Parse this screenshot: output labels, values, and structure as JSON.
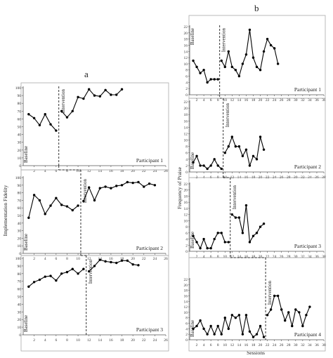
{
  "figure": {
    "label_a": "a",
    "label_b": "b"
  },
  "chart_data": [
    {
      "id": "a",
      "type": "line",
      "ylabel": "Implementation Fidelity",
      "xlabel": "",
      "xlim": [
        0,
        26
      ],
      "xticks": [
        2,
        4,
        6,
        8,
        10,
        12,
        14,
        16,
        18,
        20,
        22,
        24,
        26
      ],
      "ylim": [
        0,
        100
      ],
      "yticks": [
        0,
        10,
        20,
        30,
        40,
        50,
        60,
        70,
        80,
        90,
        100
      ],
      "panels": [
        {
          "name": "Participant 1",
          "baseline_label": "Baseline",
          "intervention_label": "Intervention",
          "phase_change_after": 6.5,
          "baseline": {
            "x": [
              1,
              2,
              3,
              4,
              5,
              6
            ],
            "y": [
              66,
              61,
              52,
              66,
              53,
              45
            ]
          },
          "intervention": {
            "x": [
              7,
              8,
              9,
              10,
              11,
              12,
              13,
              14,
              15,
              16,
              17,
              18
            ],
            "y": [
              70,
              62,
              70,
              88,
              86,
              98,
              90,
              89,
              97,
              91,
              91,
              98
            ]
          }
        },
        {
          "name": "Participant 2",
          "baseline_label": "Baseline",
          "intervention_label": "Intervention",
          "phase_change_after": 10.5,
          "baseline": {
            "x": [
              1,
              2,
              3,
              4,
              5,
              6,
              7,
              8,
              9,
              10
            ],
            "y": [
              47,
              77,
              70,
              52,
              63,
              73,
              64,
              62,
              57,
              63
            ]
          },
          "intervention": {
            "x": [
              11,
              12,
              13,
              14,
              15,
              16,
              17,
              18,
              19,
              20,
              21,
              22,
              23,
              24
            ],
            "y": [
              69,
              87,
              70,
              86,
              88,
              86,
              89,
              90,
              94,
              93,
              94,
              88,
              92,
              90
            ]
          }
        },
        {
          "name": "Participant 3",
          "baseline_label": "Baseline",
          "intervention_label": "Intervention",
          "phase_change_after": 11.5,
          "baseline": {
            "x": [
              1,
              2,
              3,
              4,
              5,
              6,
              7,
              8,
              9,
              10,
              11
            ],
            "y": [
              63,
              69,
              72,
              76,
              77,
              71,
              80,
              82,
              86,
              80,
              86
            ]
          },
          "intervention": {
            "x": [
              12,
              13,
              14,
              15,
              16,
              17,
              18,
              19,
              20,
              21
            ],
            "y": [
              83,
              90,
              98,
              96,
              95,
              94,
              97,
              97,
              92,
              91
            ]
          }
        }
      ]
    },
    {
      "id": "b",
      "type": "line",
      "ylabel": "Frequency of Praise",
      "xlabel": "Sessions",
      "xlim": [
        0,
        38
      ],
      "xticks": [
        2,
        4,
        6,
        8,
        10,
        12,
        14,
        16,
        18,
        20,
        22,
        24,
        26,
        28,
        30,
        32,
        34,
        36,
        38
      ],
      "ylim": [
        0,
        22
      ],
      "yticks": [
        0,
        2,
        4,
        6,
        8,
        10,
        12,
        14,
        16,
        18,
        20,
        22
      ],
      "panels": [
        {
          "name": "Participant 1",
          "baseline_label": "Baseline",
          "intervention_label": "Intervention",
          "phase_change_after": 8.5,
          "baseline": {
            "x": [
              1,
              2,
              3,
              4,
              5,
              6,
              7,
              8
            ],
            "y": [
              11,
              9,
              7,
              8,
              4,
              5,
              5,
              5
            ]
          },
          "intervention": {
            "x": [
              9,
              10,
              11,
              12,
              13,
              14,
              15,
              16,
              17,
              18,
              19,
              20,
              21,
              22,
              23,
              24,
              25
            ],
            "y": [
              11,
              9,
              14,
              9,
              8,
              6,
              10,
              13,
              21,
              12,
              9,
              8,
              14,
              18,
              16,
              15,
              10
            ]
          }
        },
        {
          "name": "Participant 2",
          "baseline_label": "Baseline",
          "intervention_label": "Intervention",
          "phase_change_after": 9.5,
          "baseline": {
            "x": [
              1,
              2,
              3,
              4,
              5,
              6,
              7,
              8,
              9
            ],
            "y": [
              3,
              5,
              2,
              2,
              1,
              2,
              4,
              2,
              1
            ]
          },
          "intervention": {
            "x": [
              10,
              11,
              12,
              13,
              14,
              15,
              16,
              17,
              18,
              19,
              20,
              21
            ],
            "y": [
              6,
              8,
              11,
              8,
              8,
              5,
              7,
              2,
              5,
              4,
              11,
              7
            ]
          }
        },
        {
          "name": "Participant 3",
          "baseline_label": "Baseline",
          "intervention_label": "Intervention",
          "phase_change_after": 11.5,
          "baseline": {
            "x": [
              1,
              2,
              3,
              4,
              5,
              6,
              7,
              8,
              9,
              10,
              11
            ],
            "y": [
              5,
              3,
              1,
              4,
              1,
              1,
              4,
              6,
              6,
              3,
              3
            ]
          },
          "intervention": {
            "x": [
              12,
              13,
              14,
              15,
              16,
              17,
              18,
              19,
              20,
              21
            ],
            "y": [
              12,
              11,
              11,
              6,
              15,
              3,
              5,
              6,
              8,
              9
            ]
          }
        },
        {
          "name": "Participant 4",
          "baseline_label": "Baseline",
          "intervention_label": "Intervention",
          "phase_change_after": 21.5,
          "baseline": {
            "x": [
              1,
              2,
              3,
              4,
              5,
              6,
              7,
              8,
              9,
              10,
              11,
              12,
              13,
              14,
              15,
              16,
              17,
              18,
              19,
              20,
              21
            ],
            "y": [
              4,
              5,
              7,
              4,
              2,
              5,
              2,
              5,
              2,
              8,
              4,
              9,
              8,
              9,
              2,
              9,
              3,
              1,
              2,
              5,
              1
            ]
          },
          "intervention": {
            "x": [
              22,
              23,
              24,
              25,
              26,
              27,
              28,
              29,
              30,
              31,
              32,
              33,
              34
            ],
            "y": [
              9,
              11,
              16,
              16,
              11,
              7,
              10,
              5,
              11,
              10,
              5,
              9,
              12
            ]
          }
        }
      ]
    }
  ]
}
